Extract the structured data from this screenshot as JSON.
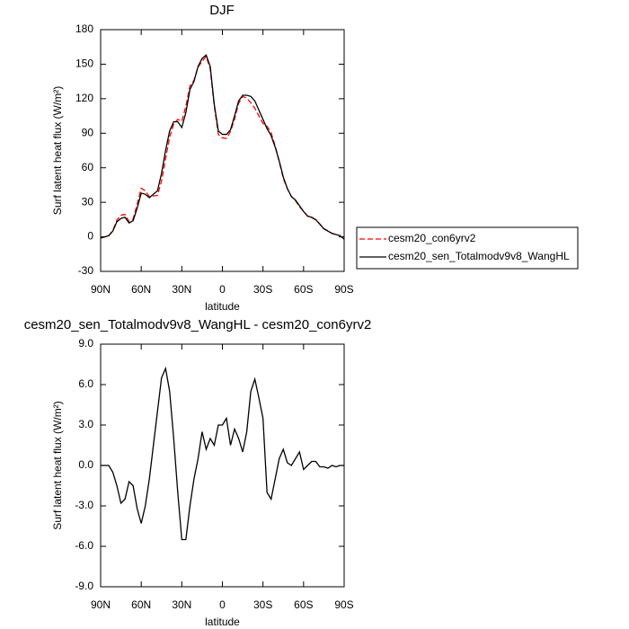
{
  "chart_data": [
    {
      "type": "line",
      "title": "DJF",
      "x_label": "latitude",
      "y_label": "Surf latent heat flux (W/m²)",
      "x": [
        90,
        87,
        84,
        81,
        78,
        75,
        72,
        69,
        66,
        63,
        60,
        57,
        54,
        51,
        48,
        45,
        42,
        39,
        36,
        33,
        30,
        27,
        24,
        21,
        18,
        15,
        12,
        9,
        6,
        3,
        0,
        -3,
        -6,
        -9,
        -12,
        -15,
        -18,
        -21,
        -24,
        -27,
        -30,
        -33,
        -36,
        -39,
        -42,
        -45,
        -48,
        -51,
        -54,
        -57,
        -60,
        -63,
        -66,
        -69,
        -72,
        -75,
        -78,
        -81,
        -84,
        -87,
        -90
      ],
      "xlim": [
        90,
        -90
      ],
      "xticks": [
        {
          "value": 90,
          "label": "90N"
        },
        {
          "value": 60,
          "label": "60N"
        },
        {
          "value": 30,
          "label": "30N"
        },
        0,
        {
          "value": -30,
          "label": "30S"
        },
        {
          "value": -60,
          "label": "60S"
        },
        {
          "value": -90,
          "label": "90S"
        }
      ],
      "ylim": [
        -30,
        180
      ],
      "yticks": [
        -30,
        0,
        30,
        60,
        90,
        120,
        150,
        180
      ],
      "legend_position": "right",
      "series": [
        {
          "name": "cesm20_con6yrv2",
          "color": "#ff0000",
          "dashed": true,
          "values": [
            -1,
            0,
            1,
            5.5,
            14.5,
            18.8,
            19.5,
            13.2,
            15.5,
            28.2,
            42.3,
            40,
            35,
            35.5,
            36,
            48.5,
            67.8,
            86.5,
            98,
            102,
            100.5,
            113.5,
            131,
            136,
            147.5,
            152.5,
            156.8,
            146,
            113.5,
            89,
            86,
            85.5,
            91.5,
            102.3,
            116,
            122,
            120.5,
            116.5,
            111.6,
            105,
            98.5,
            96,
            90.5,
            79,
            65.5,
            50.8,
            41.8,
            35,
            31.5,
            26,
            22.3,
            18,
            16.7,
            14.7,
            11.1,
            7.1,
            5.2,
            3,
            2.1,
            1,
            -2
          ]
        },
        {
          "name": "cesm20_sen_Totalmodv9v8_WangHL",
          "color": "#000000",
          "dashed": false,
          "values": [
            -1,
            0,
            1,
            5,
            13,
            16,
            17,
            12,
            14,
            25,
            38,
            37,
            34,
            37,
            40,
            55,
            75,
            92,
            100,
            100,
            95,
            108,
            128,
            135,
            148,
            155,
            158,
            148,
            115,
            92,
            89,
            89,
            93,
            105,
            118,
            123,
            123,
            122,
            118,
            110,
            102,
            94,
            88,
            78,
            66,
            52,
            42,
            35,
            32,
            27,
            22,
            18,
            17,
            15,
            11,
            7,
            5,
            3,
            2,
            1,
            -2
          ]
        }
      ]
    },
    {
      "type": "line",
      "title": "cesm20_sen_Totalmodv9v8_WangHL - cesm20_con6yrv2",
      "x_label": "latitude",
      "y_label": "Surf latent heat flux (W/m²)",
      "x": [
        90,
        87,
        84,
        81,
        78,
        75,
        72,
        69,
        66,
        63,
        60,
        57,
        54,
        51,
        48,
        45,
        42,
        39,
        36,
        33,
        30,
        27,
        24,
        21,
        18,
        15,
        12,
        9,
        6,
        3,
        0,
        -3,
        -6,
        -9,
        -12,
        -15,
        -18,
        -21,
        -24,
        -27,
        -30,
        -33,
        -36,
        -39,
        -42,
        -45,
        -48,
        -51,
        -54,
        -57,
        -60,
        -63,
        -66,
        -69,
        -72,
        -75,
        -78,
        -81,
        -84,
        -87,
        -90
      ],
      "xlim": [
        90,
        -90
      ],
      "xticks": [
        {
          "value": 90,
          "label": "90N"
        },
        {
          "value": 60,
          "label": "60N"
        },
        {
          "value": 30,
          "label": "30N"
        },
        0,
        {
          "value": -30,
          "label": "30S"
        },
        {
          "value": -60,
          "label": "60S"
        },
        {
          "value": -90,
          "label": "90S"
        }
      ],
      "ylim": [
        -9,
        9
      ],
      "yticks": [
        {
          "value": -9,
          "label": "-9.0"
        },
        {
          "value": -6,
          "label": "-6.0"
        },
        {
          "value": -3,
          "label": "-3.0"
        },
        {
          "value": 0,
          "label": "0.0"
        },
        {
          "value": 3,
          "label": "3.0"
        },
        {
          "value": 6,
          "label": "6.0"
        },
        {
          "value": 9,
          "label": "9.0"
        }
      ],
      "color": "#000000",
      "values": [
        0,
        0,
        0,
        -0.5,
        -1.5,
        -2.8,
        -2.5,
        -1.2,
        -1.5,
        -3.2,
        -4.3,
        -3,
        -1,
        1.5,
        4,
        6.5,
        7.2,
        5.5,
        2,
        -2,
        -5.5,
        -5.5,
        -3,
        -1,
        0.5,
        2.5,
        1.2,
        2,
        1.5,
        3,
        3,
        3.5,
        1.5,
        2.7,
        2,
        1,
        2.5,
        5.5,
        6.4,
        5,
        3.5,
        -2,
        -2.5,
        -1,
        0.5,
        1.2,
        0.2,
        0,
        0.5,
        1,
        -0.3,
        0,
        0.3,
        0.3,
        -0.1,
        -0.1,
        -0.2,
        0,
        -0.1,
        0,
        0
      ]
    }
  ]
}
